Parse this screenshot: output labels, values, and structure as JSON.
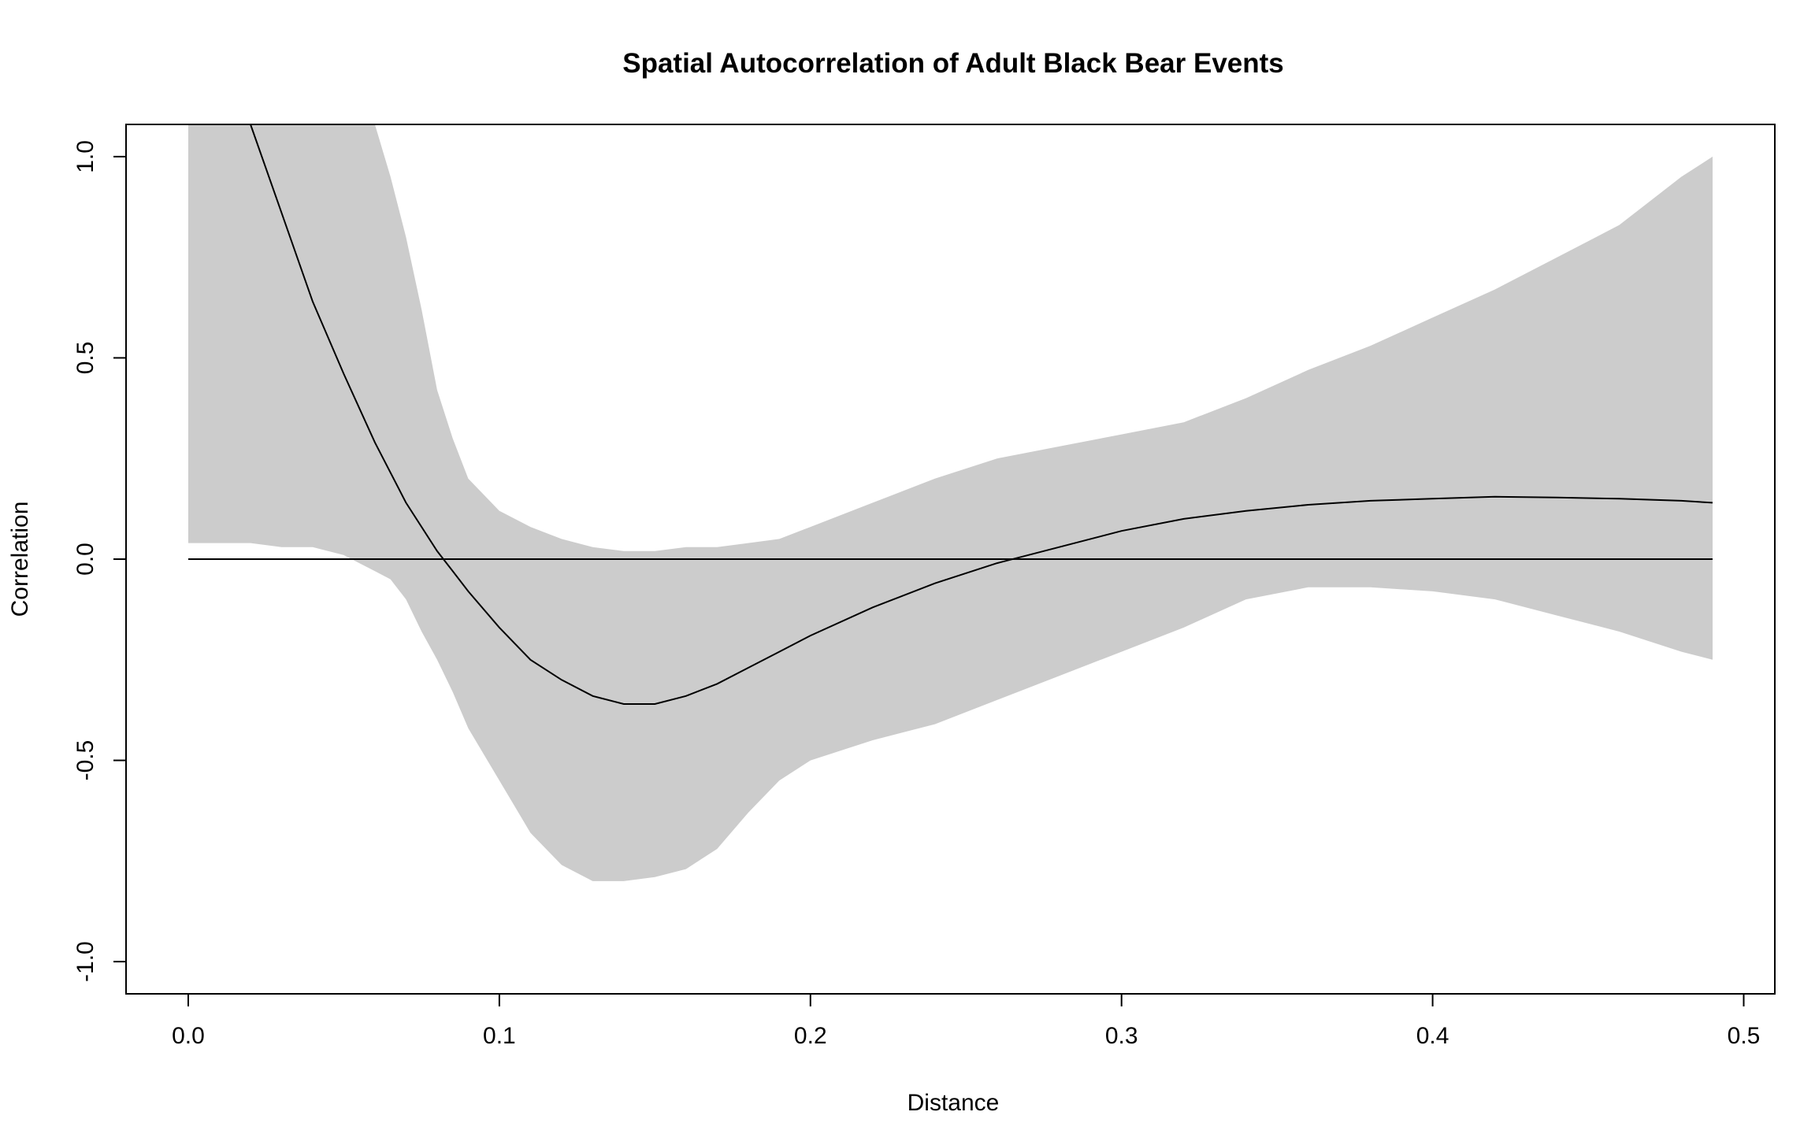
{
  "chart_data": {
    "type": "line",
    "title": "Spatial Autocorrelation of Adult Black Bear Events",
    "xlabel": "Distance",
    "ylabel": "Correlation",
    "xlim": [
      -0.02,
      0.51
    ],
    "ylim": [
      -1.08,
      1.08
    ],
    "x_ticks": [
      "0.0",
      "0.1",
      "0.2",
      "0.3",
      "0.4",
      "0.5"
    ],
    "y_ticks": [
      "-1.0",
      "-0.5",
      "0.0",
      "0.5",
      "1.0"
    ],
    "grid": false,
    "legend": "none",
    "colors": {
      "band": "#cccccc",
      "line": "#000000"
    },
    "series": [
      {
        "kind": "band",
        "x": [
          0.0,
          0.01,
          0.02,
          0.03,
          0.04,
          0.05,
          0.055,
          0.06,
          0.065,
          0.07,
          0.075,
          0.08,
          0.085,
          0.09,
          0.1,
          0.11,
          0.12,
          0.13,
          0.14,
          0.15,
          0.16,
          0.17,
          0.18,
          0.19,
          0.2,
          0.22,
          0.24,
          0.26,
          0.28,
          0.3,
          0.32,
          0.34,
          0.36,
          0.38,
          0.4,
          0.42,
          0.44,
          0.46,
          0.48,
          0.49
        ],
        "upper": [
          1.08,
          1.08,
          1.08,
          1.08,
          1.08,
          1.08,
          1.08,
          1.08,
          0.95,
          0.8,
          0.62,
          0.42,
          0.3,
          0.2,
          0.12,
          0.08,
          0.05,
          0.03,
          0.02,
          0.02,
          0.03,
          0.03,
          0.04,
          0.05,
          0.08,
          0.14,
          0.2,
          0.25,
          0.28,
          0.31,
          0.34,
          0.4,
          0.47,
          0.53,
          0.6,
          0.67,
          0.75,
          0.83,
          0.95,
          1.0
        ],
        "lower": [
          0.04,
          0.04,
          0.04,
          0.03,
          0.03,
          0.01,
          -0.01,
          -0.03,
          -0.05,
          -0.1,
          -0.18,
          -0.25,
          -0.33,
          -0.42,
          -0.55,
          -0.68,
          -0.76,
          -0.8,
          -0.8,
          -0.79,
          -0.77,
          -0.72,
          -0.63,
          -0.55,
          -0.5,
          -0.45,
          -0.41,
          -0.35,
          -0.29,
          -0.23,
          -0.17,
          -0.1,
          -0.07,
          -0.07,
          -0.08,
          -0.1,
          -0.14,
          -0.18,
          -0.23,
          -0.25
        ]
      },
      {
        "kind": "line",
        "x": [
          0.02,
          0.03,
          0.04,
          0.05,
          0.06,
          0.07,
          0.08,
          0.085,
          0.09,
          0.1,
          0.11,
          0.12,
          0.13,
          0.14,
          0.15,
          0.16,
          0.17,
          0.18,
          0.19,
          0.2,
          0.22,
          0.24,
          0.26,
          0.28,
          0.3,
          0.32,
          0.34,
          0.36,
          0.38,
          0.4,
          0.42,
          0.44,
          0.46,
          0.48,
          0.49
        ],
        "y": [
          1.08,
          0.86,
          0.64,
          0.46,
          0.29,
          0.14,
          0.02,
          -0.03,
          -0.08,
          -0.17,
          -0.25,
          -0.3,
          -0.34,
          -0.36,
          -0.36,
          -0.34,
          -0.31,
          -0.27,
          -0.23,
          -0.19,
          -0.12,
          -0.06,
          -0.01,
          0.03,
          0.07,
          0.1,
          0.12,
          0.135,
          0.145,
          0.15,
          0.155,
          0.153,
          0.15,
          0.145,
          0.14
        ]
      },
      {
        "kind": "reference",
        "x": [
          0.0,
          0.49
        ],
        "y": [
          0.0,
          0.0
        ]
      }
    ]
  }
}
